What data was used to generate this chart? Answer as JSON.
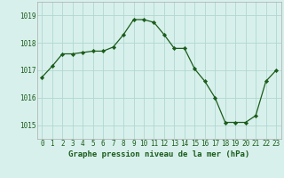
{
  "x": [
    0,
    1,
    2,
    3,
    4,
    5,
    6,
    7,
    8,
    9,
    10,
    11,
    12,
    13,
    14,
    15,
    16,
    17,
    18,
    19,
    20,
    21,
    22,
    23
  ],
  "y": [
    1016.75,
    1017.15,
    1017.6,
    1017.6,
    1017.65,
    1017.7,
    1017.7,
    1017.85,
    1018.3,
    1018.85,
    1018.85,
    1018.75,
    1018.3,
    1017.8,
    1017.8,
    1017.05,
    1016.6,
    1016.0,
    1015.1,
    1015.1,
    1015.1,
    1015.35,
    1016.6,
    1017.0
  ],
  "line_color": "#1a5c1a",
  "marker": "D",
  "marker_size": 2.2,
  "bg_color": "#d8f0ec",
  "grid_color": "#b0d8d0",
  "xlabel": "Graphe pression niveau de la mer (hPa)",
  "xlabel_color": "#1a5c1a",
  "tick_color": "#1a5c1a",
  "ytick_labels": [
    "1015",
    "1016",
    "1017",
    "1018",
    "1019"
  ],
  "ytick_values": [
    1015,
    1016,
    1017,
    1018,
    1019
  ],
  "ylim": [
    1014.5,
    1019.5
  ],
  "xlim": [
    -0.5,
    23.5
  ],
  "label_fontsize": 6.5,
  "tick_fontsize": 5.5
}
